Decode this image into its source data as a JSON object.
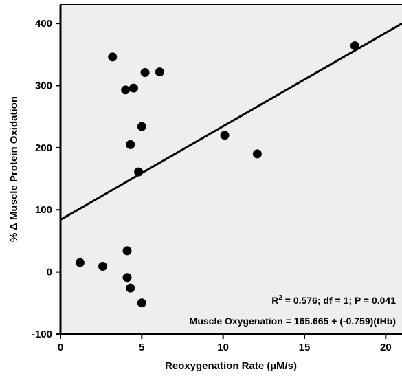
{
  "chart_data": {
    "type": "scatter",
    "title": "",
    "xlabel": "Reoxygenation Rate (µM/s)",
    "ylabel": "% Δ Muscle Protein Oxidation",
    "xlim": [
      0,
      21
    ],
    "ylim": [
      -100,
      430
    ],
    "xticks": [
      0,
      5,
      10,
      15,
      20
    ],
    "yticks": [
      -100,
      0,
      100,
      200,
      300,
      400
    ],
    "grid": false,
    "background_color": "#eeeeee",
    "point_color": "#000000",
    "points": [
      {
        "x": 3.2,
        "y": 346
      },
      {
        "x": 4.0,
        "y": 293
      },
      {
        "x": 4.5,
        "y": 296
      },
      {
        "x": 5.2,
        "y": 321
      },
      {
        "x": 6.1,
        "y": 322
      },
      {
        "x": 5.0,
        "y": 234
      },
      {
        "x": 4.3,
        "y": 205
      },
      {
        "x": 4.8,
        "y": 161
      },
      {
        "x": 10.1,
        "y": 220
      },
      {
        "x": 12.1,
        "y": 190
      },
      {
        "x": 18.1,
        "y": 364
      },
      {
        "x": 1.2,
        "y": 15
      },
      {
        "x": 2.6,
        "y": 9
      },
      {
        "x": 4.1,
        "y": 34
      },
      {
        "x": 4.1,
        "y": -9
      },
      {
        "x": 4.3,
        "y": -26
      },
      {
        "x": 5.0,
        "y": -50
      }
    ],
    "trendline": {
      "x": [
        0,
        21
      ],
      "y": [
        84,
        400
      ]
    },
    "annotations": {
      "stats_line": {
        "r_text": "R",
        "r_sup": "2",
        "rest": " = 0.576; df = 1; P = 0.041"
      },
      "equation": "Muscle Oxygenation = 165.665 + (-0.759)(tHb)"
    }
  }
}
